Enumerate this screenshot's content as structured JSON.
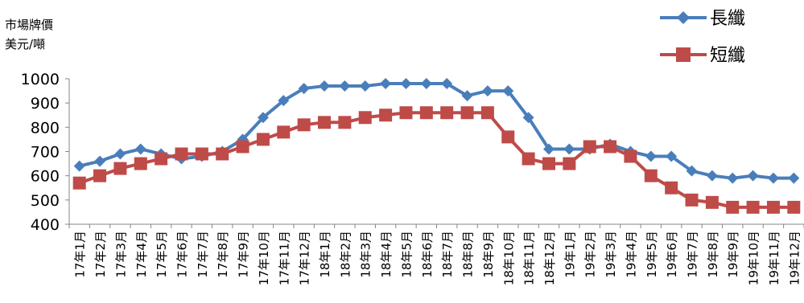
{
  "y_unit_line1": "市場牌價",
  "y_unit_line2": "美元/噸",
  "chart_data": {
    "type": "line",
    "title": "",
    "xlabel": "",
    "ylabel": "市場牌價 美元/噸",
    "ylim": [
      400,
      1000
    ],
    "yticks": [
      400,
      500,
      600,
      700,
      800,
      900,
      1000
    ],
    "grid": false,
    "legend_position": "top-right",
    "categories": [
      "17年1月",
      "17年2月",
      "17年3月",
      "17年4月",
      "17年5月",
      "17年6月",
      "17年7月",
      "17年8月",
      "17年9月",
      "17年10月",
      "17年11月",
      "17年12月",
      "18年1月",
      "18年2月",
      "18年3月",
      "18年4月",
      "18年5月",
      "18年6月",
      "18年7月",
      "18年8月",
      "18年9月",
      "18年10月",
      "18年11月",
      "18年12月",
      "19年1月",
      "19年2月",
      "19年3月",
      "19年4月",
      "19年5月",
      "19年6月",
      "19年7月",
      "19年8月",
      "19年9月",
      "19年10月",
      "19年11月",
      "19年12月"
    ],
    "series": [
      {
        "name": "長纖",
        "color": "#4a7ebb",
        "marker": "diamond",
        "values": [
          640,
          660,
          690,
          710,
          690,
          670,
          680,
          700,
          750,
          840,
          910,
          960,
          970,
          970,
          970,
          980,
          980,
          980,
          980,
          930,
          950,
          950,
          840,
          710,
          710,
          710,
          730,
          700,
          680,
          680,
          620,
          600,
          590,
          600,
          590,
          590
        ]
      },
      {
        "name": "短纖",
        "color": "#be4b48",
        "marker": "square",
        "values": [
          570,
          600,
          630,
          650,
          670,
          690,
          690,
          690,
          720,
          750,
          780,
          810,
          820,
          820,
          840,
          850,
          860,
          860,
          860,
          860,
          860,
          760,
          670,
          650,
          650,
          720,
          720,
          680,
          600,
          550,
          500,
          490,
          470,
          470,
          470,
          470
        ]
      }
    ]
  }
}
